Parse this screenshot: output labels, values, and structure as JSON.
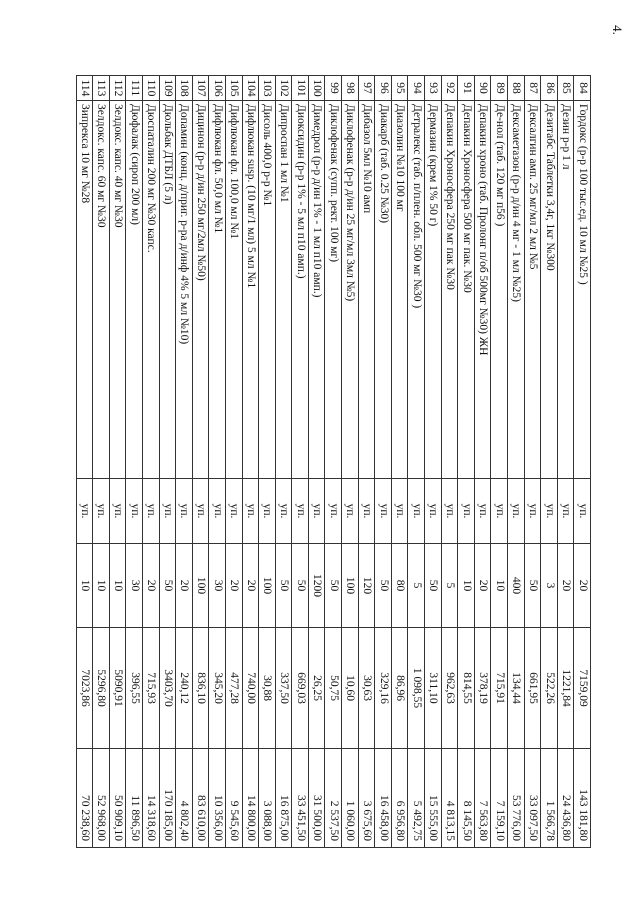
{
  "page_number": "4.",
  "table": {
    "rows": [
      [
        "84",
        "Гордокс (р-р 100 тыс.ед. 10 мл №25 )",
        "уп.",
        "20",
        "7159,09",
        "143 181,80"
      ],
      [
        "85",
        "Дезин р-р 1 л",
        "уп.",
        "20",
        "1221,84",
        "24 436,80"
      ],
      [
        "86",
        "Дезитабс Таблетки 3,4г, 1кг №300",
        "уп.",
        "3",
        "522,26",
        "1 566,78"
      ],
      [
        "87",
        "Дексалгин амп. 25 мг/мл 2 мл №5",
        "уп.",
        "50",
        "661,95",
        "33 097,50"
      ],
      [
        "88",
        "Дексаметазон (р-р д/ин 4 мг - 1 мл  №25)",
        "уп.",
        "400",
        "134,44",
        "53 776,00"
      ],
      [
        "89",
        "Де-нол (таб. 120 мг п56 )",
        "уп.",
        "10",
        "715,91",
        "7 159,10"
      ],
      [
        "90",
        "Депакин хроно (таб. Пролонг п/об 500мг №30) ЖН",
        "уп.",
        "20",
        "378,19",
        "7 563,80"
      ],
      [
        "91",
        "Депакин Хроносфера 500 мг пак. №30",
        "уп.",
        "10",
        "814,55",
        "8 145,50"
      ],
      [
        "92",
        "Депакин Хроносфера 250 мг пак №30",
        "уп.",
        "5",
        "962,63",
        "4 813,15"
      ],
      [
        "93",
        "Дермазин (крем 1% 50 г)",
        "уп.",
        "50",
        "311,10",
        "15 555,00"
      ],
      [
        "94",
        "Детралекс (таб. п/плен. обл. 500 мг №30 )",
        "уп.",
        "5",
        "1 098,55",
        "5 492,75"
      ],
      [
        "95",
        "Диазолин №10 100 мг",
        "уп.",
        "80",
        "86,96",
        "6 956,80"
      ],
      [
        "96",
        "Диакарб (таб. 0.25  №30)",
        "уп.",
        "50",
        "329,16",
        "16 458,00"
      ],
      [
        "97",
        "Дибазол  5мл  №10 амп",
        "уп.",
        "120",
        "30,63",
        "3 675,60"
      ],
      [
        "98",
        "Диклофенак (р-р д/ин 25 мг/мл 3мл №5)",
        "уп.",
        "100",
        "10,60",
        "1 060,00"
      ],
      [
        "99",
        "Диклофенак (супп. рект. 100 мг)",
        "уп.",
        "50",
        "50,75",
        "2 537,50"
      ],
      [
        "100",
        "Димедрол (р-р д/ин 1% - 1 мл п10 амп.)",
        "уп.",
        "1200",
        "26,25",
        "31 500,00"
      ],
      [
        "101",
        "Диоксидин (р-р 1% - 5 мл п10 амп.)",
        "уп.",
        "50",
        "669,03",
        "33 451,50"
      ],
      [
        "102",
        "Дипроспан 1 мл №1",
        "уп.",
        "50",
        "337,50",
        "16 875,00"
      ],
      [
        "103",
        "Дисоль 400,0 р-р №1",
        "уп.",
        "100",
        "30,88",
        "3 088,00"
      ],
      [
        "104",
        "Дифлюкан susp. (10 мг/1 мл) 5 мл №1",
        "уп.",
        "20",
        "740,00",
        "14 800,00"
      ],
      [
        "105",
        "Дифлюкан фл. 100,0 мл  №1",
        "уп.",
        "20",
        "477,28",
        "9 545,60"
      ],
      [
        "106",
        "Дифлюкан фл. 50,0 мл  №1",
        "уп.",
        "30",
        "345,20",
        "10 356,00"
      ],
      [
        "107",
        "Дицинон (р-р д/ин 250 мг/2мл  №50)",
        "уп.",
        "100",
        "836,10",
        "83 610,00"
      ],
      [
        "108",
        "Допамин (конц. д/приг. р-ра д/инф 4% 5 мл №10)",
        "уп.",
        "20",
        "240,12",
        "4 802,40"
      ],
      [
        "109",
        "Дюльбак ДТБЛ (5 л)",
        "уп.",
        "50",
        "3403,70",
        "170 185,00"
      ],
      [
        "110",
        "Дюспаталин 200 мг №30 капс.",
        "уп.",
        "20",
        "715,93",
        "14 318,60"
      ],
      [
        "111",
        "Дюфалак (сироп 200 мл)",
        "уп.",
        "30",
        "396,55",
        "11 896,50"
      ],
      [
        "112",
        "Зелдокс. капс. 40 мг №30",
        "уп.",
        "10",
        "5090,91",
        "50 909,10"
      ],
      [
        "113",
        "Зелдокс. капс. 60 мг №30",
        "уп.",
        "10",
        "5296,80",
        "52 968,00"
      ],
      [
        "114",
        "Зипрекса 10 мг №28",
        "уп.",
        "10",
        "7023,86",
        "70 238,60"
      ]
    ]
  }
}
